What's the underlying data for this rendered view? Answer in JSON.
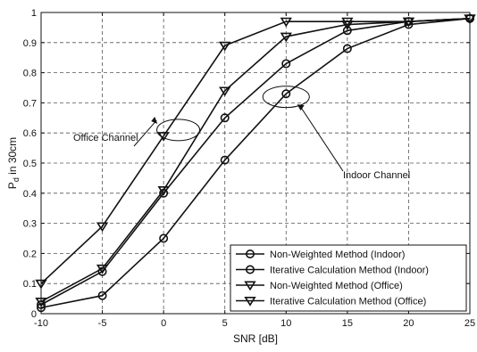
{
  "chart_data": {
    "type": "line",
    "title": "",
    "xlabel": "SNR [dB]",
    "ylabel_main": "P",
    "ylabel_sub": "d",
    "ylabel_rest": " in 30cm",
    "xlim": [
      -10,
      25
    ],
    "ylim": [
      0,
      1
    ],
    "xticks": [
      -10,
      -5,
      0,
      5,
      10,
      15,
      20,
      25
    ],
    "yticks": [
      0,
      0.1,
      0.2,
      0.3,
      0.4,
      0.5,
      0.6,
      0.7,
      0.8,
      0.9,
      1
    ],
    "xtick_labels": [
      "-10",
      "-5",
      "0",
      "5",
      "10",
      "15",
      "20",
      "25"
    ],
    "ytick_labels": [
      "0",
      "0.1",
      "0.2",
      "0.3",
      "0.4",
      "0.5",
      "0.6",
      "0.7",
      "0.8",
      "0.9",
      "1"
    ],
    "grid": "dashed",
    "legend_position": "bottom-right",
    "series": [
      {
        "name": "Non-Weighted Method (Indoor)",
        "marker": "circle",
        "x": [
          -10,
          -5,
          0,
          5,
          10,
          15,
          20,
          25
        ],
        "y": [
          0.02,
          0.06,
          0.25,
          0.51,
          0.73,
          0.88,
          0.96,
          0.98
        ]
      },
      {
        "name": "Iterative Calculation Method (Indoor)",
        "marker": "circle",
        "x": [
          -10,
          -5,
          0,
          5,
          10,
          15,
          20,
          25
        ],
        "y": [
          0.03,
          0.14,
          0.4,
          0.65,
          0.83,
          0.94,
          0.97,
          0.98
        ]
      },
      {
        "name": "Non-Weighted Method (Office)",
        "marker": "triangle-down",
        "x": [
          -10,
          -5,
          0,
          5,
          10,
          15,
          20,
          25
        ],
        "y": [
          0.1,
          0.29,
          0.59,
          0.89,
          0.97,
          0.97,
          0.97,
          0.98
        ]
      },
      {
        "name": "Iterative Calculation Method (Office)",
        "marker": "triangle-down",
        "x": [
          -10,
          -5,
          0,
          5,
          10,
          15,
          20,
          25
        ],
        "y": [
          0.04,
          0.15,
          0.41,
          0.74,
          0.92,
          0.96,
          0.97,
          0.98
        ]
      }
    ],
    "annotations": [
      {
        "text": "Office Channel",
        "ellipse_center": [
          1.2,
          0.61
        ],
        "arrow_target": [
          -0.5,
          0.63
        ]
      },
      {
        "text": "Indoor Channel",
        "ellipse_center": [
          10.0,
          0.72
        ],
        "arrow_target": [
          10.9,
          0.695
        ]
      }
    ]
  }
}
